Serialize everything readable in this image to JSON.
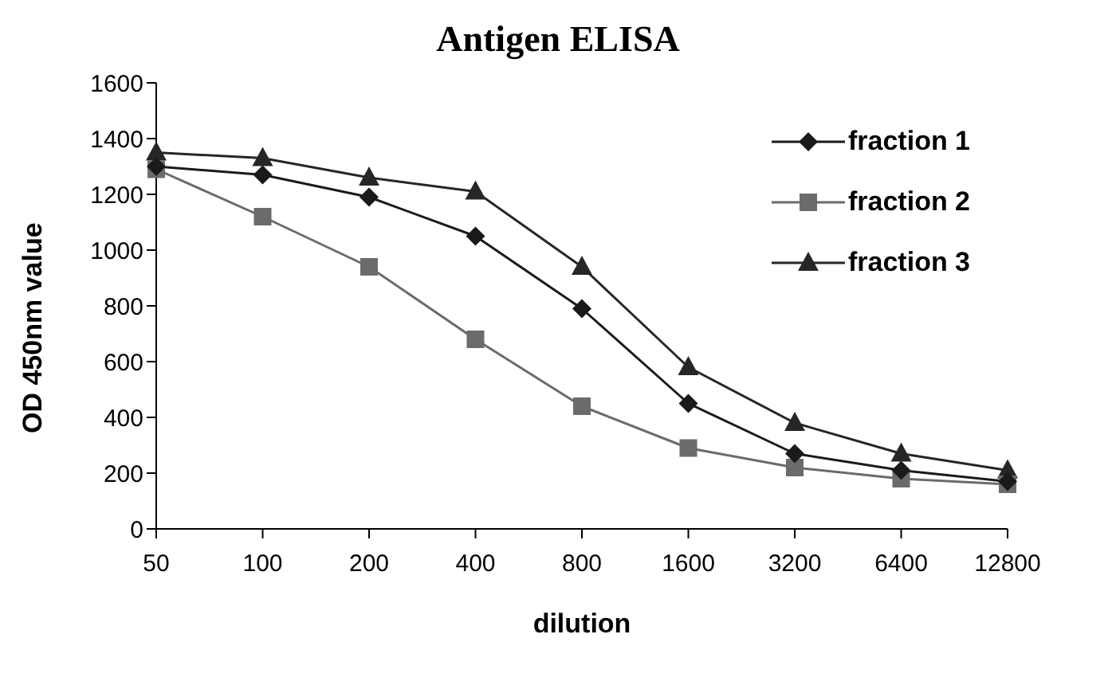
{
  "chart_data": {
    "type": "line",
    "title": "Antigen ELISA",
    "xlabel": "dilution",
    "ylabel": "OD 450nm value",
    "categories": [
      "50",
      "100",
      "200",
      "400",
      "800",
      "1600",
      "3200",
      "6400",
      "12800"
    ],
    "series": [
      {
        "name": "fraction 1",
        "color": "#1a1a1a",
        "marker": "diamond",
        "values": [
          1300,
          1270,
          1190,
          1050,
          790,
          450,
          270,
          210,
          170
        ]
      },
      {
        "name": "fraction 2",
        "color": "#6b6b6b",
        "marker": "square",
        "values": [
          1290,
          1120,
          940,
          680,
          440,
          290,
          220,
          180,
          160
        ]
      },
      {
        "name": "fraction 3",
        "color": "#262626",
        "marker": "triangle",
        "values": [
          1350,
          1330,
          1260,
          1210,
          940,
          580,
          380,
          270,
          210
        ]
      }
    ],
    "ylim": [
      0,
      1600
    ],
    "yticks": [
      0,
      200,
      400,
      600,
      800,
      1000,
      1200,
      1400,
      1600
    ],
    "grid": false,
    "legend": "top right",
    "line_style": "solid"
  }
}
